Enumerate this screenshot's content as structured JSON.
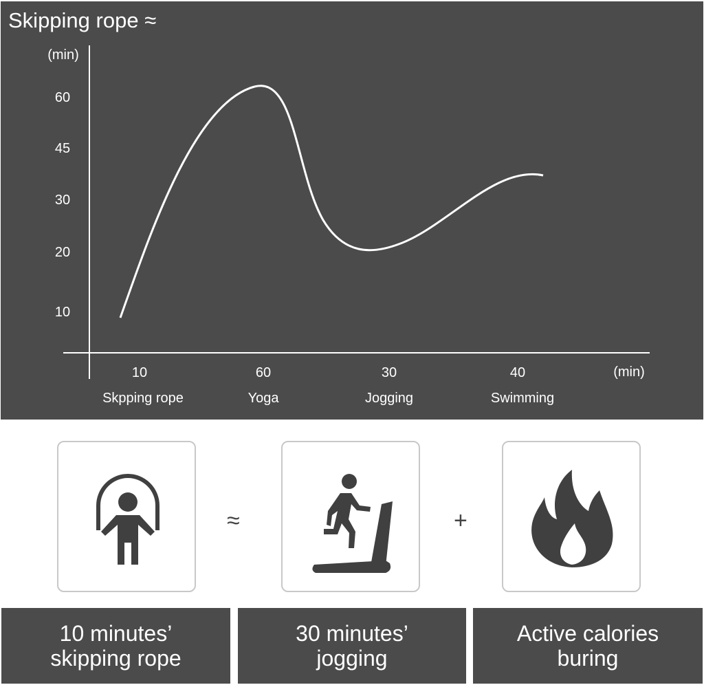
{
  "chart_data": {
    "type": "line",
    "title": "Skipping rope ≈",
    "ylabel": "(min)",
    "xlabel": "(min)",
    "yticks": [
      10,
      20,
      30,
      45,
      60
    ],
    "categories": [
      "Skpping rope",
      "Yoga",
      "Jogging",
      "Swimming"
    ],
    "x_values": [
      "10",
      "60",
      "30",
      "40"
    ],
    "grid": false,
    "line_color": "#ffffff",
    "background": "#4b4b4b"
  },
  "equation": {
    "cards": [
      {
        "icon": "jump-rope-icon"
      },
      {
        "icon": "treadmill-icon"
      },
      {
        "icon": "fire-icon"
      }
    ],
    "operators": [
      "≈",
      "+"
    ],
    "labels": [
      {
        "line1": "10 minutes’",
        "line2": "skipping rope"
      },
      {
        "line1": "30 minutes’",
        "line2": "jogging"
      },
      {
        "line1": "Active calories",
        "line2": "buring"
      }
    ]
  }
}
